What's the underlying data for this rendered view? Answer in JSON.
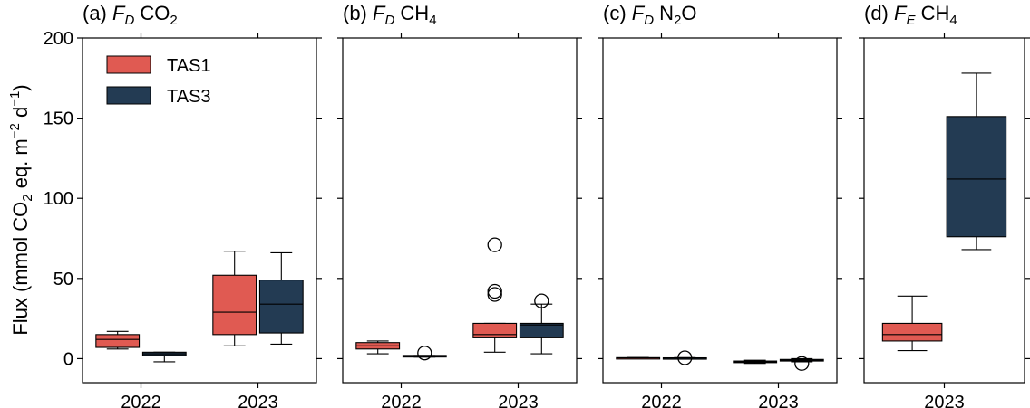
{
  "colors": {
    "TAS1": "#e05a52",
    "TAS3": "#233b53"
  },
  "shared": {
    "ylabel": "Flux (mmol CO₂ eq. m⁻² d⁻¹)",
    "ylabel_parts": {
      "a": "Flux (mmol CO",
      "b": "2",
      "c": " eq. m",
      "d": "−2",
      "e": " d",
      "f": "−1",
      "g": ")"
    },
    "ylim": [
      -15,
      200
    ],
    "yticks": [
      0,
      50,
      100,
      150,
      200
    ]
  },
  "legend": {
    "items": [
      "TAS1",
      "TAS3"
    ],
    "placement": "upper-left"
  },
  "chart_data": [
    {
      "type": "box",
      "panel": "a",
      "title": {
        "prefix": "(a) ",
        "var": "F",
        "sub_italic": "D",
        "rest": " CO",
        "sub": "2"
      },
      "categories": [
        "2022",
        "2023"
      ],
      "series": [
        {
          "name": "TAS1",
          "boxes": [
            {
              "category": "2022",
              "whislo": 6,
              "q1": 7,
              "med": 12,
              "q3": 15,
              "whishi": 17,
              "fliers": []
            },
            {
              "category": "2023",
              "whislo": 8,
              "q1": 15,
              "med": 29,
              "q3": 52,
              "whishi": 67,
              "fliers": []
            }
          ]
        },
        {
          "name": "TAS3",
          "boxes": [
            {
              "category": "2022",
              "whislo": -2,
              "q1": 2,
              "med": 3,
              "q3": 4,
              "whishi": 4,
              "fliers": []
            },
            {
              "category": "2023",
              "whislo": 9,
              "q1": 16,
              "med": 34,
              "q3": 49,
              "whishi": 66,
              "fliers": []
            }
          ]
        }
      ]
    },
    {
      "type": "box",
      "panel": "b",
      "title": {
        "prefix": "(b) ",
        "var": "F",
        "sub_italic": "D",
        "rest": " CH",
        "sub": "4"
      },
      "categories": [
        "2022",
        "2023"
      ],
      "series": [
        {
          "name": "TAS1",
          "boxes": [
            {
              "category": "2022",
              "whislo": 3,
              "q1": 6,
              "med": 8,
              "q3": 10,
              "whishi": 11,
              "fliers": []
            },
            {
              "category": "2023",
              "whislo": 4,
              "q1": 13,
              "med": 15,
              "q3": 22,
              "whishi": 22,
              "fliers": [
                40,
                42,
                71
              ]
            }
          ]
        },
        {
          "name": "TAS3",
          "boxes": [
            {
              "category": "2022",
              "whislo": 1,
              "q1": 1,
              "med": 1.5,
              "q3": 2,
              "whishi": 2,
              "fliers": [
                3.5
              ]
            },
            {
              "category": "2023",
              "whislo": 3,
              "q1": 13,
              "med": 21,
              "q3": 22,
              "whishi": 34,
              "fliers": [
                36
              ]
            }
          ]
        }
      ]
    },
    {
      "type": "box",
      "panel": "c",
      "title": {
        "prefix": "(c) ",
        "var": "F",
        "sub_italic": "D",
        "rest": " N",
        "sub": "2",
        "rest2": "O"
      },
      "categories": [
        "2022",
        "2023"
      ],
      "series": [
        {
          "name": "TAS1",
          "boxes": [
            {
              "category": "2022",
              "whislo": 0.3,
              "q1": 0.4,
              "med": 0.5,
              "q3": 0.6,
              "whishi": 0.7,
              "fliers": []
            },
            {
              "category": "2023",
              "whislo": -3,
              "q1": -2.5,
              "med": -2,
              "q3": -1.5,
              "whishi": -1,
              "fliers": []
            }
          ]
        },
        {
          "name": "TAS3",
          "boxes": [
            {
              "category": "2022",
              "whislo": 0.2,
              "q1": 0.3,
              "med": 0.4,
              "q3": 0.5,
              "whishi": 0.6,
              "fliers": [
                0.5
              ]
            },
            {
              "category": "2023",
              "whislo": -2,
              "q1": -1.5,
              "med": -1,
              "q3": -0.5,
              "whishi": 0,
              "fliers": [
                -3
              ]
            }
          ]
        }
      ]
    },
    {
      "type": "box",
      "panel": "d",
      "title": {
        "prefix": "(d) ",
        "var": "F",
        "sub_italic": "E",
        "rest": " CH",
        "sub": "4"
      },
      "categories": [
        "2023"
      ],
      "series": [
        {
          "name": "TAS1",
          "boxes": [
            {
              "category": "2023",
              "whislo": 5,
              "q1": 11,
              "med": 15,
              "q3": 22,
              "whishi": 39,
              "fliers": []
            }
          ]
        },
        {
          "name": "TAS3",
          "boxes": [
            {
              "category": "2023",
              "whislo": 68,
              "q1": 76,
              "med": 112,
              "q3": 151,
              "whishi": 178,
              "fliers": []
            }
          ]
        }
      ]
    }
  ]
}
